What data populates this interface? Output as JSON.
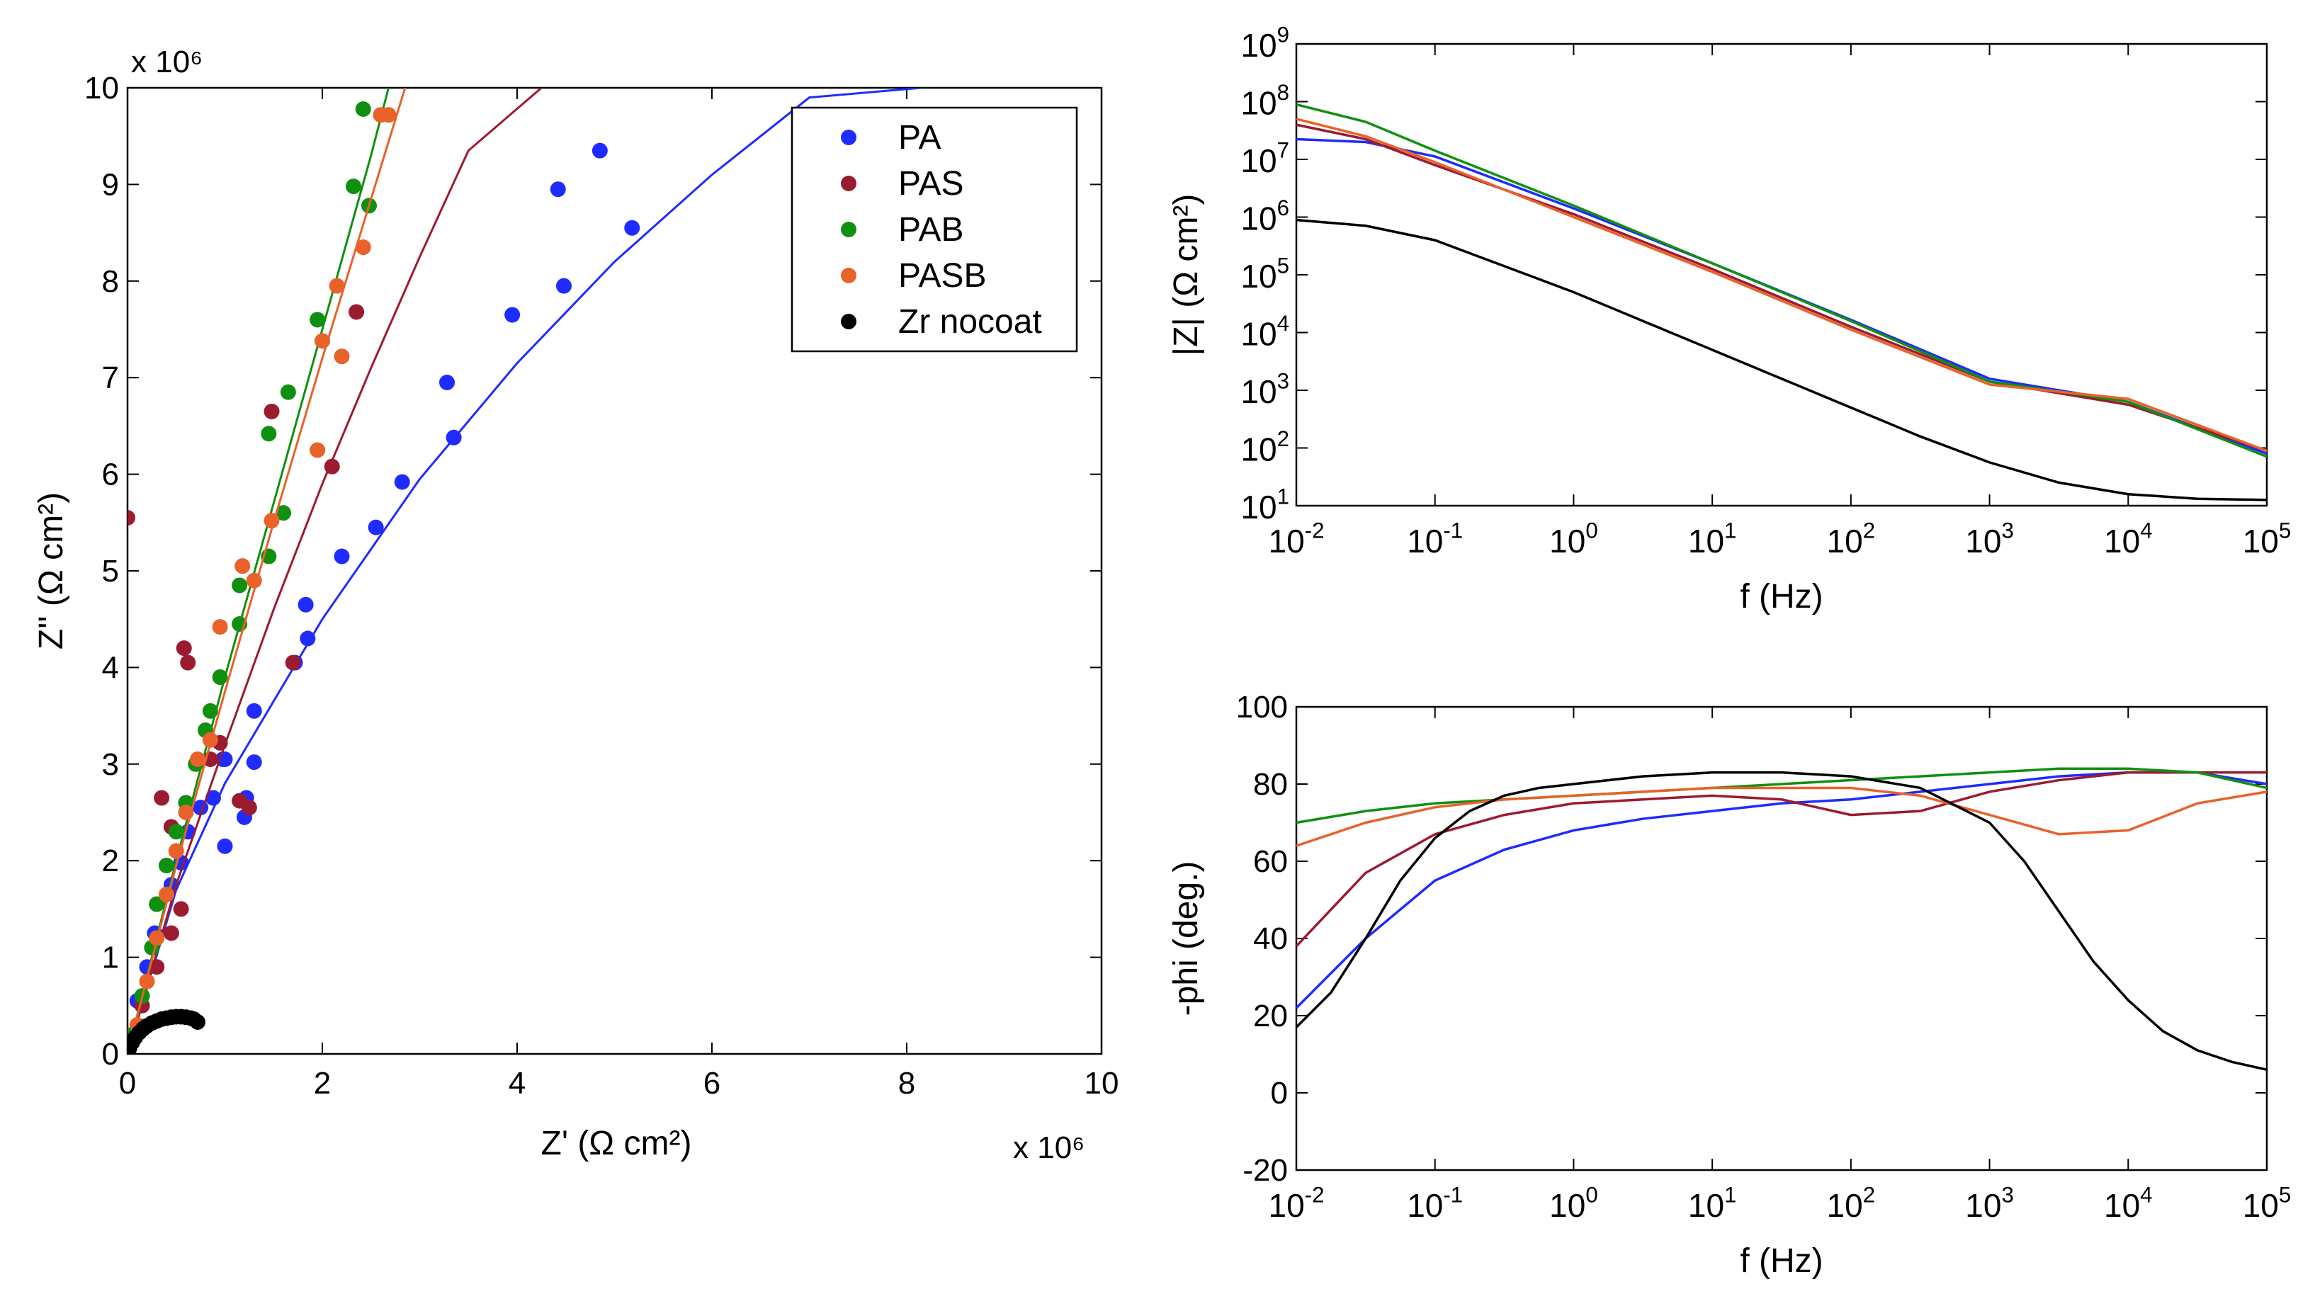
{
  "chart_data": [
    {
      "type": "scatter",
      "xlabel": "Z' (Ω cm²)",
      "ylabel": "Z'' (Ω cm²)",
      "x_multiplier": "x 10⁶",
      "y_multiplier": "x 10⁶",
      "xlim": [
        0,
        10
      ],
      "ylim": [
        0,
        10
      ],
      "xticks": [
        "0",
        "2",
        "4",
        "6",
        "8",
        "10"
      ],
      "yticks": [
        "0",
        "1",
        "2",
        "3",
        "4",
        "5",
        "6",
        "7",
        "8",
        "9",
        "10"
      ],
      "legend_position": "top-right",
      "series": [
        {
          "name": "PA",
          "color": "#1f2bff",
          "points": [
            [
              0.05,
              0.2
            ],
            [
              0.1,
              0.55
            ],
            [
              0.2,
              0.9
            ],
            [
              0.28,
              1.25
            ],
            [
              0.3,
              1.55
            ],
            [
              0.45,
              1.75
            ],
            [
              0.55,
              1.98
            ],
            [
              0.62,
              2.3
            ],
            [
              0.75,
              2.55
            ],
            [
              0.88,
              2.65
            ],
            [
              1.0,
              2.15
            ],
            [
              0.98,
              3.05
            ],
            [
              1.0,
              3.05
            ],
            [
              1.2,
              2.45
            ],
            [
              1.22,
              2.65
            ],
            [
              1.3,
              3.02
            ],
            [
              1.3,
              3.55
            ],
            [
              1.72,
              4.05
            ],
            [
              1.85,
              4.3
            ],
            [
              1.83,
              4.65
            ],
            [
              2.2,
              5.15
            ],
            [
              2.55,
              5.45
            ],
            [
              2.82,
              5.92
            ],
            [
              3.35,
              6.38
            ],
            [
              3.28,
              6.95
            ],
            [
              3.95,
              7.65
            ],
            [
              4.48,
              7.95
            ],
            [
              4.42,
              8.95
            ],
            [
              4.85,
              9.35
            ],
            [
              5.18,
              8.55
            ]
          ],
          "fit": [
            [
              0,
              0
            ],
            [
              0.5,
              1.7
            ],
            [
              1,
              2.8
            ],
            [
              2,
              4.5
            ],
            [
              3,
              5.95
            ],
            [
              4,
              7.15
            ],
            [
              5,
              8.2
            ],
            [
              6,
              9.1
            ],
            [
              7,
              9.9
            ],
            [
              8.15,
              10
            ]
          ]
        },
        {
          "name": "PAS",
          "color": "#9b1b30",
          "points": [
            [
              0,
              5.55
            ],
            [
              0.35,
              2.65
            ],
            [
              0.4,
              1.95
            ],
            [
              0.45,
              2.35
            ],
            [
              0.58,
              4.2
            ],
            [
              0.62,
              4.05
            ],
            [
              0.85,
              3.05
            ],
            [
              0.95,
              3.22
            ],
            [
              1.15,
              2.62
            ],
            [
              1.25,
              2.55
            ],
            [
              1.48,
              6.65
            ],
            [
              1.7,
              4.05
            ],
            [
              2.1,
              6.08
            ],
            [
              2.35,
              7.68
            ],
            [
              0.55,
              1.5
            ],
            [
              0.45,
              1.25
            ],
            [
              0.3,
              0.9
            ],
            [
              0.15,
              0.5
            ]
          ],
          "fit": [
            [
              0,
              0
            ],
            [
              0.5,
              1.75
            ],
            [
              1,
              3.2
            ],
            [
              1.5,
              4.6
            ],
            [
              2,
              5.9
            ],
            [
              2.5,
              7.1
            ],
            [
              3,
              8.25
            ],
            [
              3.5,
              9.35
            ],
            [
              4.25,
              10
            ]
          ]
        },
        {
          "name": "PAB",
          "color": "#109010",
          "points": [
            [
              0.05,
              0.2
            ],
            [
              0.15,
              0.6
            ],
            [
              0.25,
              1.1
            ],
            [
              0.3,
              1.55
            ],
            [
              0.4,
              1.95
            ],
            [
              0.5,
              2.3
            ],
            [
              0.6,
              2.6
            ],
            [
              0.7,
              3.0
            ],
            [
              0.8,
              3.35
            ],
            [
              0.85,
              3.55
            ],
            [
              0.95,
              3.9
            ],
            [
              1.15,
              4.45
            ],
            [
              1.15,
              4.85
            ],
            [
              1.45,
              5.15
            ],
            [
              1.45,
              6.42
            ],
            [
              1.6,
              5.6
            ],
            [
              1.65,
              6.85
            ],
            [
              1.95,
              7.6
            ],
            [
              2.32,
              8.98
            ],
            [
              2.42,
              9.78
            ],
            [
              2.48,
              8.78
            ]
          ],
          "fit": [
            [
              0,
              0
            ],
            [
              0.5,
              2.0
            ],
            [
              1,
              3.9
            ],
            [
              1.5,
              5.7
            ],
            [
              2,
              7.5
            ],
            [
              2.5,
              9.3
            ],
            [
              2.68,
              10
            ]
          ]
        },
        {
          "name": "PASB",
          "color": "#e8622a",
          "points": [
            [
              0.1,
              0.3
            ],
            [
              0.2,
              0.75
            ],
            [
              0.3,
              1.2
            ],
            [
              0.4,
              1.65
            ],
            [
              0.5,
              2.1
            ],
            [
              0.6,
              2.5
            ],
            [
              0.72,
              3.05
            ],
            [
              0.85,
              3.25
            ],
            [
              0.95,
              4.42
            ],
            [
              1.18,
              5.05
            ],
            [
              1.3,
              4.9
            ],
            [
              1.48,
              5.52
            ],
            [
              1.95,
              6.25
            ],
            [
              2.0,
              7.38
            ],
            [
              2.15,
              7.95
            ],
            [
              2.2,
              7.22
            ],
            [
              2.42,
              8.35
            ],
            [
              2.6,
              9.72
            ],
            [
              2.68,
              9.72
            ]
          ],
          "fit": [
            [
              0,
              0
            ],
            [
              0.5,
              1.95
            ],
            [
              1,
              3.75
            ],
            [
              1.5,
              5.5
            ],
            [
              2,
              7.2
            ],
            [
              2.5,
              8.85
            ],
            [
              2.85,
              10
            ]
          ]
        },
        {
          "name": "Zr nocoat",
          "color": "#000000",
          "points": [
            [
              0,
              0
            ],
            [
              0.02,
              0.06
            ],
            [
              0.05,
              0.12
            ],
            [
              0.08,
              0.17
            ],
            [
              0.12,
              0.22
            ],
            [
              0.16,
              0.26
            ],
            [
              0.2,
              0.29
            ],
            [
              0.25,
              0.32
            ],
            [
              0.3,
              0.34
            ],
            [
              0.35,
              0.36
            ],
            [
              0.4,
              0.37
            ],
            [
              0.45,
              0.38
            ],
            [
              0.5,
              0.385
            ],
            [
              0.55,
              0.385
            ],
            [
              0.6,
              0.38
            ],
            [
              0.65,
              0.37
            ],
            [
              0.68,
              0.36
            ],
            [
              0.72,
              0.33
            ]
          ],
          "fit": [
            [
              0,
              0
            ],
            [
              0.05,
              0.12
            ],
            [
              0.15,
              0.24
            ],
            [
              0.3,
              0.33
            ],
            [
              0.45,
              0.38
            ],
            [
              0.6,
              0.38
            ],
            [
              0.72,
              0.33
            ]
          ]
        }
      ]
    },
    {
      "type": "line",
      "xlabel": "f (Hz)",
      "ylabel": "|Z| (Ω cm²)",
      "x_scale": "log",
      "y_scale": "log",
      "xlim_exp": [
        -2,
        5
      ],
      "ylim_exp": [
        1,
        9
      ],
      "xticks": [
        "10-2",
        "10-1",
        "100",
        "101",
        "102",
        "103",
        "104",
        "105"
      ],
      "yticks": [
        "101",
        "102",
        "103",
        "104",
        "105",
        "106",
        "107",
        "108",
        "109"
      ],
      "series": [
        {
          "name": "PA",
          "color": "#1f2bff",
          "log_x": [
            -2,
            -1.5,
            -1,
            0,
            1,
            2,
            3,
            4,
            5
          ],
          "log_y": [
            7.35,
            7.3,
            7.05,
            6.15,
            5.2,
            4.22,
            3.2,
            2.8,
            1.9
          ]
        },
        {
          "name": "PAS",
          "color": "#9b1b30",
          "log_x": [
            -2,
            -1.5,
            -1,
            0,
            1,
            2,
            3,
            4,
            5
          ],
          "log_y": [
            7.6,
            7.35,
            6.9,
            6.05,
            5.1,
            4.1,
            3.15,
            2.75,
            1.95
          ]
        },
        {
          "name": "PAB",
          "color": "#109010",
          "log_x": [
            -2,
            -1.5,
            -1,
            0,
            1,
            2,
            3,
            4,
            5
          ],
          "log_y": [
            7.95,
            7.65,
            7.15,
            6.2,
            5.2,
            4.2,
            3.15,
            2.8,
            1.85
          ]
        },
        {
          "name": "PASB",
          "color": "#e8622a",
          "log_x": [
            -2,
            -1.5,
            -1,
            0,
            1,
            2,
            3,
            4,
            5
          ],
          "log_y": [
            7.7,
            7.4,
            6.95,
            6.0,
            5.05,
            4.05,
            3.1,
            2.85,
            1.95
          ]
        },
        {
          "name": "Zr nocoat",
          "color": "#000000",
          "log_x": [
            -2,
            -1.5,
            -1,
            -0.5,
            0,
            0.5,
            1,
            1.5,
            2,
            2.5,
            3,
            3.5,
            4,
            4.5,
            5
          ],
          "log_y": [
            5.95,
            5.85,
            5.6,
            5.15,
            4.7,
            4.2,
            3.7,
            3.2,
            2.7,
            2.2,
            1.75,
            1.4,
            1.2,
            1.12,
            1.1
          ]
        }
      ]
    },
    {
      "type": "line",
      "xlabel": "f (Hz)",
      "ylabel": "-phi (deg.)",
      "x_scale": "log",
      "xlim_exp": [
        -2,
        5
      ],
      "ylim": [
        -20,
        100
      ],
      "xticks": [
        "10-2",
        "10-1",
        "100",
        "101",
        "102",
        "103",
        "104",
        "105"
      ],
      "yticks": [
        "-20",
        "0",
        "20",
        "40",
        "60",
        "80",
        "100"
      ],
      "series": [
        {
          "name": "PA",
          "color": "#1f2bff",
          "log_x": [
            -2,
            -1.5,
            -1,
            -0.5,
            0,
            0.5,
            1,
            1.5,
            2,
            2.5,
            3,
            3.5,
            4,
            4.5,
            5
          ],
          "log_y": [
            22,
            40,
            55,
            63,
            68,
            71,
            73,
            75,
            76,
            78,
            80,
            82,
            83,
            83,
            80
          ]
        },
        {
          "name": "PAS",
          "color": "#9b1b30",
          "log_x": [
            -2,
            -1.5,
            -1,
            -0.5,
            0,
            0.5,
            1,
            1.5,
            2,
            2.5,
            3,
            3.5,
            4,
            4.5,
            5
          ],
          "log_y": [
            38,
            57,
            67,
            72,
            75,
            76,
            77,
            76,
            72,
            73,
            78,
            81,
            83,
            83,
            83
          ]
        },
        {
          "name": "PAB",
          "color": "#109010",
          "log_x": [
            -2,
            -1.5,
            -1,
            -0.5,
            0,
            0.5,
            1,
            1.5,
            2,
            2.5,
            3,
            3.5,
            4,
            4.5,
            5
          ],
          "log_y": [
            70,
            73,
            75,
            76,
            77,
            78,
            79,
            80,
            81,
            82,
            83,
            84,
            84,
            83,
            79
          ]
        },
        {
          "name": "PASB",
          "color": "#e8622a",
          "log_x": [
            -2,
            -1.5,
            -1,
            -0.5,
            0,
            0.5,
            1,
            1.5,
            2,
            2.5,
            3,
            3.5,
            4,
            4.5,
            5
          ],
          "log_y": [
            64,
            70,
            74,
            76,
            77,
            78,
            79,
            79,
            79,
            77,
            72,
            67,
            68,
            75,
            78
          ]
        },
        {
          "name": "Zr nocoat",
          "color": "#000000",
          "log_x": [
            -2,
            -1.75,
            -1.5,
            -1.25,
            -1,
            -0.75,
            -0.5,
            -0.25,
            0,
            0.5,
            1,
            1.5,
            2,
            2.5,
            3,
            3.25,
            3.5,
            3.75,
            4,
            4.25,
            4.5,
            4.75,
            5
          ],
          "log_y": [
            17,
            26,
            40,
            55,
            66,
            73,
            77,
            79,
            80,
            82,
            83,
            83,
            82,
            79,
            70,
            60,
            47,
            34,
            24,
            16,
            11,
            8,
            6
          ]
        }
      ]
    }
  ]
}
